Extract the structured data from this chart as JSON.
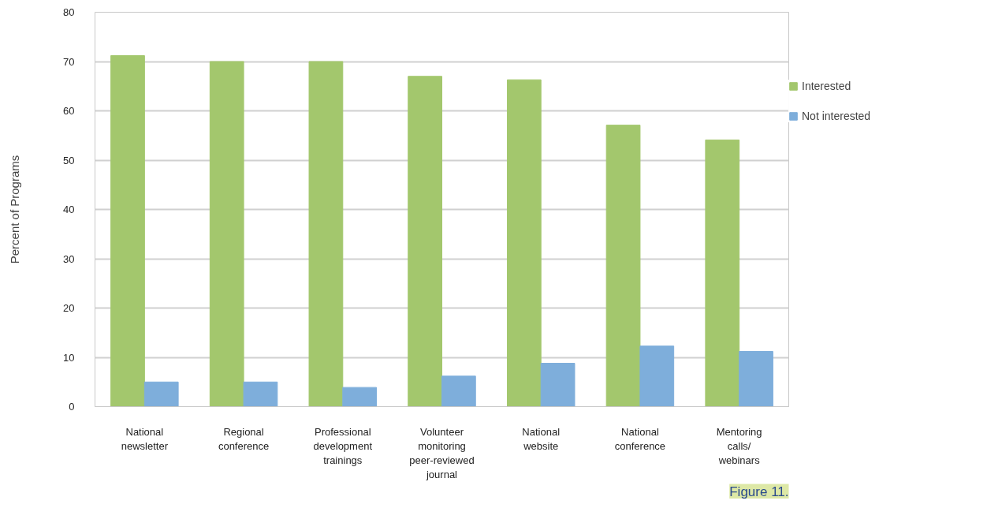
{
  "chart_data": {
    "type": "bar",
    "ylabel": "Percent of Programs",
    "categories": [
      "National newsletter",
      "Regional conference",
      "Professional development trainings",
      "Volunteer monitoring peer-reviewed journal",
      "National website",
      "National conference",
      "Mentoring calls/ webinars"
    ],
    "series": [
      {
        "name": "Interested",
        "color": "#a3c76d",
        "values": [
          71.2,
          70,
          70,
          67,
          66.3,
          57.1,
          54.1
        ]
      },
      {
        "name": "Not interested",
        "color": "#7eaedb",
        "values": [
          5,
          5,
          3.9,
          6.2,
          8.8,
          12.3,
          11.2
        ]
      }
    ],
    "ylim": [
      0,
      80
    ],
    "yticks": [
      0,
      10,
      20,
      30,
      40,
      50,
      60,
      70,
      80
    ],
    "grid": "y",
    "legend": "right",
    "annotations": [
      "Figure 11."
    ]
  }
}
